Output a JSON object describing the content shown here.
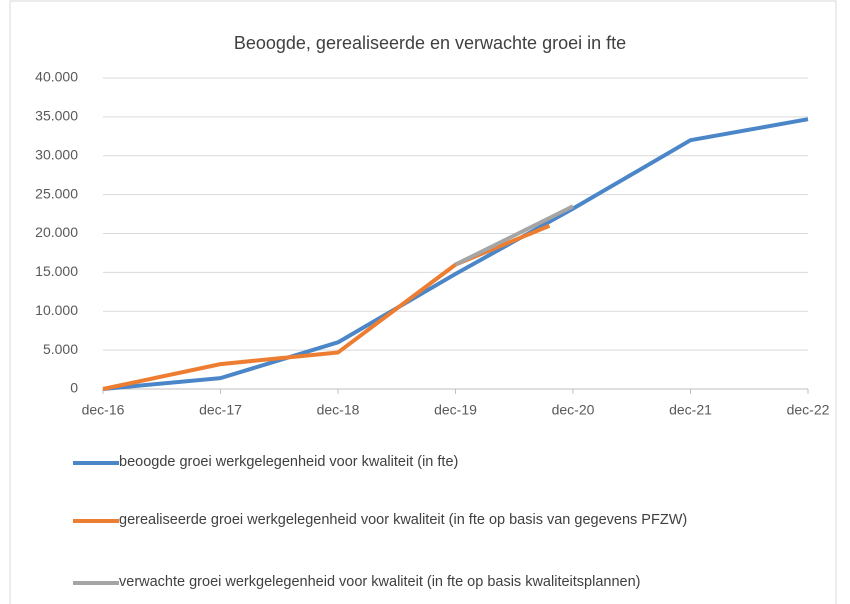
{
  "chart_data": {
    "type": "line",
    "title": "Beoogde, gerealiseerde en verwachte groei in fte",
    "xlim": [
      0,
      6
    ],
    "xticks": [
      {
        "value": 0,
        "label": "dec-16"
      },
      {
        "value": 1,
        "label": "dec-17"
      },
      {
        "value": 2,
        "label": "dec-18"
      },
      {
        "value": 3,
        "label": "dec-19"
      },
      {
        "value": 4,
        "label": "dec-20"
      },
      {
        "value": 5,
        "label": "dec-21"
      },
      {
        "value": 6,
        "label": "dec-22"
      }
    ],
    "ylim": [
      0,
      40000
    ],
    "yticks": [
      0,
      {
        "value": 5000,
        "label": "5.000"
      },
      {
        "value": 10000,
        "label": "10.000"
      },
      {
        "value": 15000,
        "label": "15.000"
      },
      {
        "value": 20000,
        "label": "20.000"
      },
      {
        "value": 25000,
        "label": "25.000"
      },
      {
        "value": 30000,
        "label": "30.000"
      },
      {
        "value": 35000,
        "label": "35.000"
      },
      {
        "value": 40000,
        "label": "40.000"
      }
    ],
    "grid": true,
    "legend": "bottom",
    "series": [
      {
        "name": "beoogde groei werkgelegenheid voor kwaliteit (in fte)",
        "color": "#4a86c8",
        "x": [
          0,
          1,
          2,
          3,
          4,
          5,
          6
        ],
        "values": [
          0,
          1400,
          6000,
          14800,
          23200,
          32000,
          34700
        ]
      },
      {
        "name": "gerealiseerde groei werkgelegenheid voor kwaliteit (in fte op basis van gegevens PFZW)",
        "color": "#ed7d31",
        "x": [
          0,
          1,
          2,
          3,
          3.8
        ],
        "values": [
          0,
          3200,
          4700,
          16000,
          21000
        ]
      },
      {
        "name": "verwachte groei werkgelegenheid voor kwaliteit (in fte op basis kwaliteitsplannen)",
        "color": "#a5a5a5",
        "x": [
          3,
          4
        ],
        "values": [
          16000,
          23500
        ]
      }
    ]
  }
}
